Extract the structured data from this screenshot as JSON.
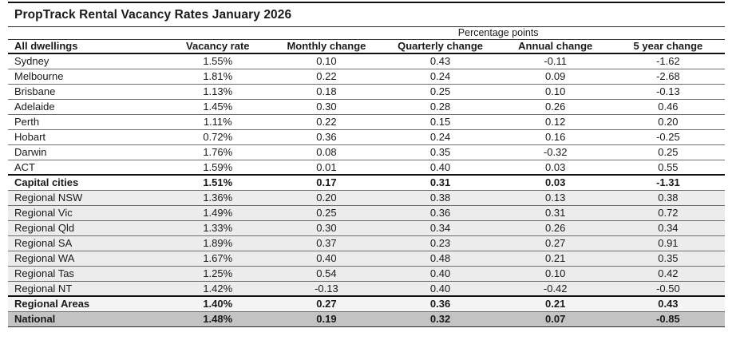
{
  "title": "PropTrack Rental Vacancy Rates January 2026",
  "colors": {
    "shaded_row_background": "#ececec",
    "regional_areas_row_background": "#f4f4f4",
    "national_row_background": "#c3c3c3",
    "text": "#1a1a1a",
    "rule_thin": "#6e6e6e",
    "rule_thick": "#0f0f0f"
  },
  "chart_data": {
    "type": "table",
    "title": "PropTrack Rental Vacancy Rates January 2026",
    "group_header_label": "Percentage points",
    "group_header_spans": [
      "Monthly change",
      "Quarterly change",
      "Annual change",
      "5 year change"
    ],
    "columns": [
      "All dwellings",
      "Vacancy rate",
      "Monthly change",
      "Quarterly change",
      "Annual change",
      "5 year change"
    ],
    "rows": [
      {
        "label": "Sydney",
        "values": [
          "1.55%",
          "0.10",
          "0.43",
          "-0.11",
          "-1.62"
        ],
        "style": "plain"
      },
      {
        "label": "Melbourne",
        "values": [
          "1.81%",
          "0.22",
          "0.24",
          "0.09",
          "-2.68"
        ],
        "style": "plain"
      },
      {
        "label": "Brisbane",
        "values": [
          "1.13%",
          "0.18",
          "0.25",
          "0.10",
          "-0.13"
        ],
        "style": "plain"
      },
      {
        "label": "Adelaide",
        "values": [
          "1.45%",
          "0.30",
          "0.28",
          "0.26",
          "0.46"
        ],
        "style": "plain"
      },
      {
        "label": "Perth",
        "values": [
          "1.11%",
          "0.22",
          "0.15",
          "0.12",
          "0.20"
        ],
        "style": "plain"
      },
      {
        "label": "Hobart",
        "values": [
          "0.72%",
          "0.36",
          "0.24",
          "0.16",
          "-0.25"
        ],
        "style": "plain"
      },
      {
        "label": "Darwin",
        "values": [
          "1.76%",
          "0.08",
          "0.35",
          "-0.32",
          "0.25"
        ],
        "style": "plain"
      },
      {
        "label": "ACT",
        "values": [
          "1.59%",
          "0.01",
          "0.40",
          "0.03",
          "0.55"
        ],
        "style": "plain"
      },
      {
        "label": "Capital cities",
        "values": [
          "1.51%",
          "0.17",
          "0.31",
          "0.03",
          "-1.31"
        ],
        "style": "bold-summary"
      },
      {
        "label": "Regional NSW",
        "values": [
          "1.36%",
          "0.20",
          "0.38",
          "0.13",
          "0.38"
        ],
        "style": "shaded"
      },
      {
        "label": "Regional Vic",
        "values": [
          "1.49%",
          "0.25",
          "0.36",
          "0.31",
          "0.72"
        ],
        "style": "shaded"
      },
      {
        "label": "Regional Qld",
        "values": [
          "1.33%",
          "0.30",
          "0.34",
          "0.26",
          "0.34"
        ],
        "style": "shaded"
      },
      {
        "label": "Regional SA",
        "values": [
          "1.89%",
          "0.37",
          "0.23",
          "0.27",
          "0.91"
        ],
        "style": "shaded"
      },
      {
        "label": "Regional WA",
        "values": [
          "1.67%",
          "0.40",
          "0.48",
          "0.21",
          "0.35"
        ],
        "style": "shaded"
      },
      {
        "label": "Regional Tas",
        "values": [
          "1.25%",
          "0.54",
          "0.40",
          "0.10",
          "0.42"
        ],
        "style": "shaded"
      },
      {
        "label": "Regional NT",
        "values": [
          "1.42%",
          "-0.13",
          "0.40",
          "-0.42",
          "-0.50"
        ],
        "style": "shaded"
      },
      {
        "label": "Regional Areas",
        "values": [
          "1.40%",
          "0.27",
          "0.36",
          "0.21",
          "0.43"
        ],
        "style": "bold-light"
      },
      {
        "label": "National",
        "values": [
          "1.48%",
          "0.19",
          "0.32",
          "0.07",
          "-0.85"
        ],
        "style": "bold-dark"
      }
    ]
  }
}
